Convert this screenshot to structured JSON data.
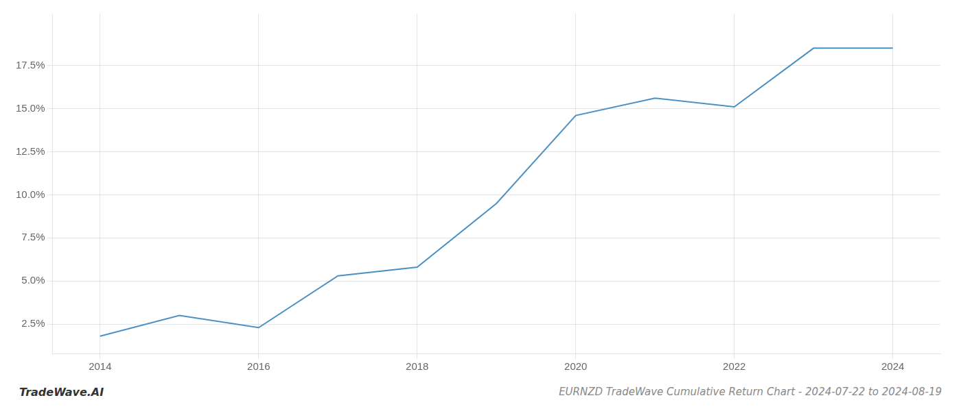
{
  "chart_data": {
    "type": "line",
    "title": "EURNZD TradeWave Cumulative Return Chart - 2024-07-22 to 2024-08-19",
    "annotations": [
      "TradeWave.AI"
    ],
    "x": [
      2014,
      2015,
      2016,
      2017,
      2018,
      2019,
      2020,
      2021,
      2022,
      2023,
      2024
    ],
    "values": [
      1.8,
      3.0,
      2.3,
      5.3,
      5.8,
      9.5,
      14.6,
      15.6,
      15.1,
      18.5,
      18.5
    ],
    "color": "#4a90c4",
    "xlim": [
      2013.4,
      2024.6
    ],
    "ylim": [
      0.8,
      20.5
    ],
    "xticks": [
      2014,
      2016,
      2018,
      2020,
      2022,
      2024
    ],
    "yticks": [
      {
        "value": 2.5,
        "label": "2.5%"
      },
      {
        "value": 5.0,
        "label": "5.0%"
      },
      {
        "value": 7.5,
        "label": "7.5%"
      },
      {
        "value": 10.0,
        "label": "10.0%"
      },
      {
        "value": 12.5,
        "label": "12.5%"
      },
      {
        "value": 15.0,
        "label": "15.0%"
      },
      {
        "value": 17.5,
        "label": "17.5%"
      }
    ],
    "grid": true
  }
}
